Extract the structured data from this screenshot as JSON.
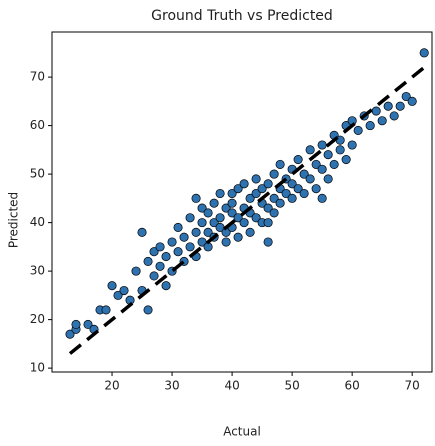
{
  "chart_data": {
    "type": "scatter",
    "title": "Ground Truth vs Predicted",
    "x_label": "Actual",
    "y_label": "Predicted",
    "xlim": [
      10,
      73.3
    ],
    "ylim": [
      9.2,
      79.3
    ],
    "xticks": [
      20,
      30,
      40,
      50,
      60,
      70
    ],
    "yticks": [
      10,
      20,
      30,
      40,
      50,
      60,
      70
    ],
    "color": "#2f72b0",
    "edge_color": "#000000",
    "reference_line": {
      "x": [
        13,
        72
      ],
      "y": [
        13,
        72
      ],
      "color": "#000000",
      "dashed": true
    },
    "x": [
      13,
      14,
      14,
      16,
      17,
      18,
      19,
      20,
      21,
      22,
      23,
      24,
      25,
      25,
      26,
      26,
      27,
      27,
      28,
      28,
      29,
      29,
      30,
      30,
      31,
      31,
      32,
      32,
      33,
      33,
      34,
      34,
      34,
      35,
      35,
      35,
      36,
      36,
      36,
      37,
      37,
      37,
      38,
      38,
      38,
      39,
      39,
      39,
      40,
      40,
      40,
      40,
      41,
      41,
      41,
      42,
      42,
      42,
      43,
      43,
      43,
      44,
      44,
      44,
      45,
      45,
      45,
      46,
      46,
      46,
      47,
      47,
      47,
      48,
      48,
      48,
      49,
      49,
      50,
      50,
      50,
      51,
      51,
      52,
      52,
      53,
      53,
      54,
      54,
      55,
      55,
      56,
      56,
      57,
      57,
      58,
      58,
      59,
      59,
      60,
      61,
      62,
      63,
      64,
      65,
      66,
      67,
      68,
      69,
      70,
      72,
      60,
      55,
      46
    ],
    "y": [
      17,
      18,
      19,
      19,
      18,
      22,
      22,
      27,
      25,
      26,
      24,
      30,
      38,
      26,
      22,
      32,
      29,
      34,
      31,
      35,
      27,
      33,
      36,
      30,
      34,
      39,
      32,
      37,
      41,
      35,
      38,
      33,
      45,
      40,
      36,
      43,
      38,
      42,
      35,
      40,
      44,
      37,
      46,
      39,
      41,
      43,
      38,
      36,
      42,
      46,
      39,
      44,
      41,
      47,
      37,
      43,
      40,
      48,
      45,
      42,
      38,
      46,
      41,
      49,
      44,
      47,
      40,
      43,
      48,
      36,
      45,
      50,
      42,
      47,
      44,
      52,
      46,
      49,
      48,
      51,
      45,
      53,
      47,
      50,
      46,
      55,
      49,
      52,
      47,
      51,
      56,
      54,
      49,
      58,
      52,
      55,
      57,
      60,
      53,
      56,
      59,
      62,
      60,
      63,
      61,
      64,
      62,
      64,
      66,
      65,
      75,
      61,
      45,
      40
    ]
  }
}
